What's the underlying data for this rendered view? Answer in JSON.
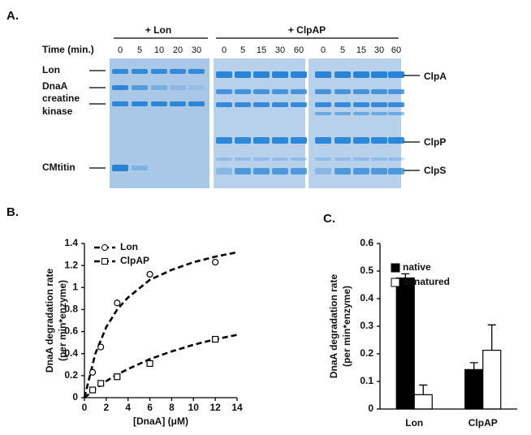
{
  "panel_a": {
    "label": "A.",
    "groups": [
      "+ Lon",
      "+ ClpAP"
    ],
    "time_label": "Time (min.)",
    "lon_times": [
      0,
      5,
      10,
      20,
      30
    ],
    "clpap_times": [
      0,
      5,
      15,
      30,
      60,
      0,
      5,
      15,
      30,
      60
    ],
    "left_labels": [
      "Lon",
      "DnaA",
      "creatine",
      "kinase",
      "CMtitin"
    ],
    "right_labels": [
      "ClpA",
      "ClpP",
      "ClpS"
    ]
  },
  "chart_data": [
    {
      "type": "scatter",
      "title": "B.",
      "xlabel": "[DnaA] (μM)",
      "ylabel": [
        "DnaA degradation rate",
        "(per min*enzyme)"
      ],
      "xlim": [
        0,
        14
      ],
      "xticks": [
        0,
        2,
        4,
        6,
        8,
        10,
        12,
        14
      ],
      "ylim": [
        0,
        1.4
      ],
      "yticks": [
        0,
        0.2,
        0.4,
        0.6,
        0.8,
        1,
        1.2,
        1.4
      ],
      "legend": "top-left",
      "series": [
        {
          "name": "Lon",
          "color": "#000000",
          "marker": "circle",
          "x": [
            0.75,
            1.5,
            3,
            6,
            12
          ],
          "values": [
            0.23,
            0.46,
            0.86,
            1.12,
            1.23
          ],
          "fit_x": [
            0,
            1,
            2,
            3,
            4,
            6,
            8,
            10,
            12,
            14
          ],
          "fit_values": [
            0,
            0.4,
            0.64,
            0.8,
            0.91,
            1.07,
            1.16,
            1.23,
            1.28,
            1.32
          ]
        },
        {
          "name": "ClpAP",
          "color": "#000000",
          "marker": "square",
          "x": [
            0.75,
            1.5,
            3,
            6,
            12
          ],
          "values": [
            0.07,
            0.13,
            0.19,
            0.31,
            0.53
          ],
          "fit_x": [
            0,
            1,
            2,
            3,
            4,
            6,
            8,
            10,
            12,
            14
          ],
          "fit_values": [
            0,
            0.08,
            0.15,
            0.21,
            0.26,
            0.35,
            0.42,
            0.48,
            0.53,
            0.57
          ]
        }
      ]
    },
    {
      "type": "bar",
      "title": "C.",
      "ylabel": [
        "DnaA degradation rate",
        "(per min*enzyme)"
      ],
      "categories": [
        "Lon",
        "ClpAP"
      ],
      "ylim": [
        0,
        0.6
      ],
      "yticks": [
        0,
        0.1,
        0.2,
        0.3,
        0.4,
        0.5,
        0.6
      ],
      "legend": "top-left",
      "series": [
        {
          "name": "native",
          "color": "#000000",
          "values": [
            0.475,
            0.143
          ],
          "errors": [
            0.015,
            0.025
          ]
        },
        {
          "name": "denatured",
          "color": "#ffffff",
          "values": [
            0.052,
            0.213
          ],
          "errors": [
            0.035,
            0.092
          ]
        }
      ]
    }
  ]
}
